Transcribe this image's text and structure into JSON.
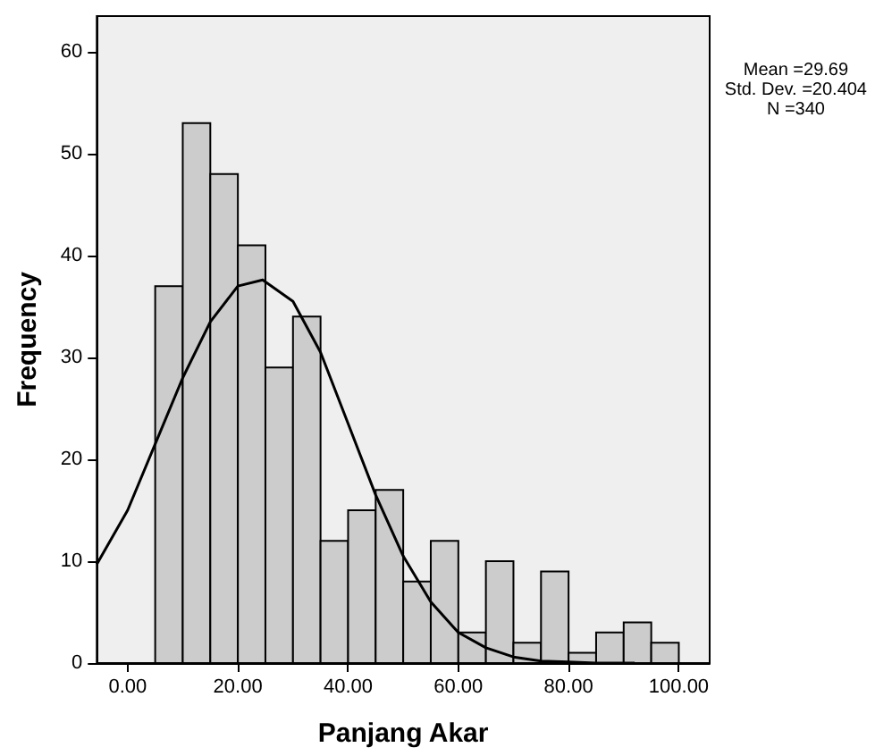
{
  "chart_data": {
    "type": "histogram",
    "xlabel": "Panjang Akar",
    "ylabel": "Frequency",
    "annotations": [
      "Mean =29.69\nStd. Dev. =20.404\nN =340"
    ],
    "bins": [
      5,
      10,
      15,
      20,
      25,
      30,
      35,
      40,
      45,
      50,
      55,
      60,
      65,
      70,
      75,
      80,
      85,
      90,
      95,
      100
    ],
    "values": [
      37,
      53,
      48,
      41,
      29,
      34,
      12,
      15,
      17,
      8,
      12,
      3,
      10,
      2,
      9,
      1,
      3,
      4,
      2
    ],
    "color": "#cccccc",
    "series": [
      {
        "type": "line",
        "color": "#000000",
        "x": [
          -5.6,
          0,
          5,
          10,
          15,
          20,
          24.5,
          30,
          35,
          40,
          45,
          50,
          55,
          60,
          65,
          70,
          75,
          80,
          85,
          92
        ],
        "values": [
          9.7,
          15,
          21.5,
          28,
          33.5,
          37,
          37.6,
          35.5,
          30.5,
          23.5,
          16.5,
          10.5,
          6,
          3,
          1.5,
          0.6,
          0.2,
          0.1,
          0,
          0
        ]
      }
    ],
    "xlim": [
      -5.6,
      105.6
    ],
    "xticks": [
      {
        "value": 0,
        "label": "0.00"
      },
      {
        "value": 20,
        "label": "20.00"
      },
      {
        "value": 40,
        "label": "40.00"
      },
      {
        "value": 60,
        "label": "60.00"
      },
      {
        "value": 80,
        "label": "80.00"
      },
      {
        "value": 100,
        "label": "100.00"
      }
    ],
    "ylim": [
      0,
      63.5
    ],
    "yticks": [
      0,
      10,
      20,
      30,
      40,
      50,
      60
    ],
    "grid": false
  }
}
